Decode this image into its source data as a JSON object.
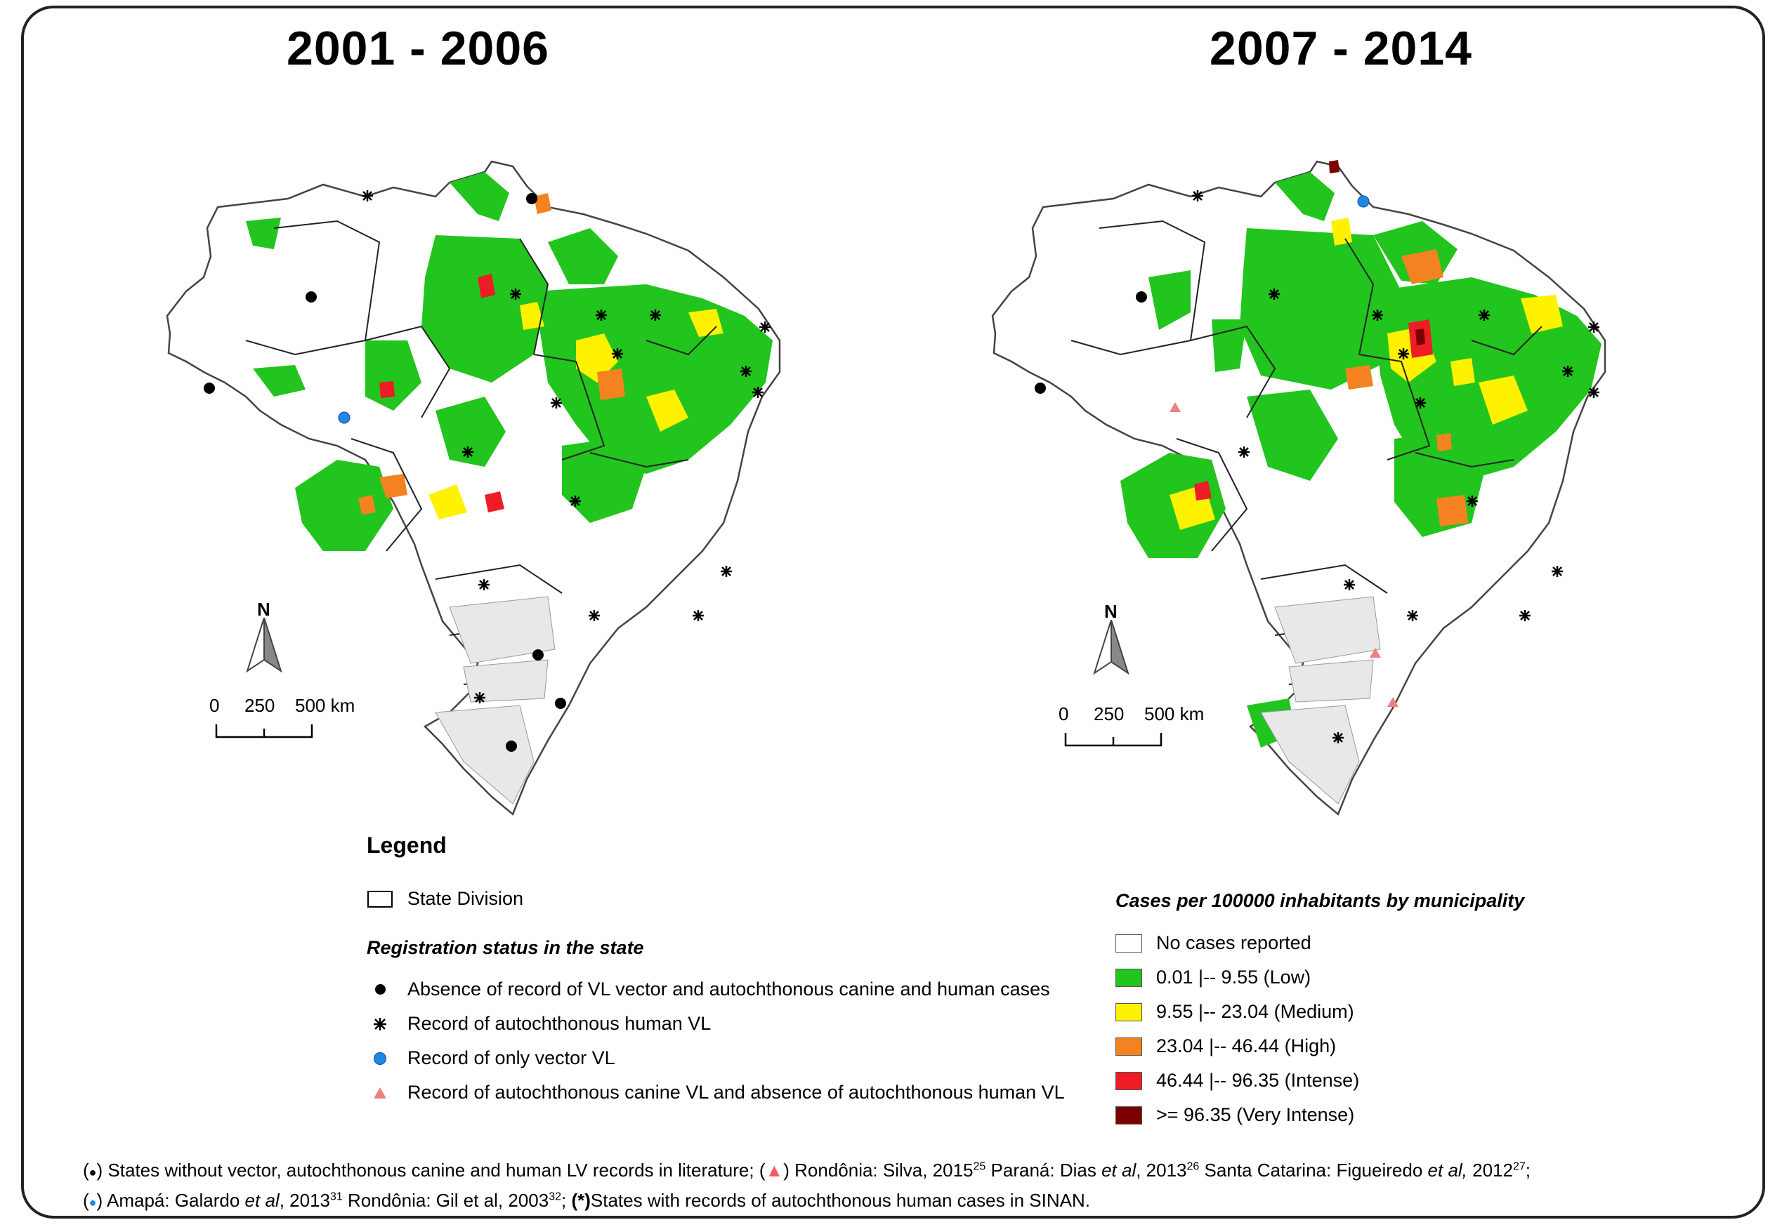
{
  "titles": {
    "left": "2001 - 2006",
    "right": "2007 - 2014"
  },
  "north_label": "N",
  "scale_labels": {
    "zero": "0",
    "mid": "250",
    "end": "500 km"
  },
  "legend": {
    "title": "Legend",
    "state_division": "State Division",
    "registration_title": "Registration status in the state",
    "items": [
      {
        "symbol": "black-dot",
        "label": "Absence of record of VL vector and autochthonous canine and human cases"
      },
      {
        "symbol": "asterisk",
        "label": "Record of autochthonous human VL"
      },
      {
        "symbol": "blue-dot",
        "label": "Record of only vector VL"
      },
      {
        "symbol": "pink-triangle",
        "label": "Record of autochthonous canine VL and absence of autochthonous human VL"
      }
    ]
  },
  "classes": {
    "title": "Cases per 100000 inhabitants by municipality",
    "items": [
      {
        "label": "No cases reported",
        "color": "#ffffff"
      },
      {
        "label": "0.01 |-- 9.55 (Low)",
        "color": "#22c41e"
      },
      {
        "label": "9.55 |-- 23.04 (Medium)",
        "color": "#fff200"
      },
      {
        "label": "23.04 |-- 46.44 (High)",
        "color": "#f58220"
      },
      {
        "label": "46.44 |-- 96.35 (Intense)",
        "color": "#ee1c24"
      },
      {
        "label": ">= 96.35 (Very Intense)",
        "color": "#7a0000"
      }
    ]
  },
  "footnotes": {
    "line1": {
      "a": "(",
      "b": ") States without vector, autochthonous canine and human LV records in literature; (",
      "c": ") Rondônia: Silva, 2015",
      "c_sup": "25",
      "d": " Paraná: Dias ",
      "d_it": "et al",
      "d2": ", 2013",
      "d_sup": "26",
      "e": " Santa Catarina: Figueiredo ",
      "e_it": "et al,",
      "e2": " 2012",
      "e_sup": "27",
      "f": ";"
    },
    "line2": {
      "a": "(",
      "b": ") Amapá: Galardo ",
      "b_it": "et al",
      "b2": ", 2013",
      "b_sup": "31",
      "c": " Rondônia: Gil et al, 2003",
      "c_sup": "32",
      "d": "; ",
      "d_bold": "(*)",
      "e": "States with records of autochthonous human cases in SINAN."
    }
  },
  "colors": {
    "no_cases": "#ffffff",
    "low": "#22c41e",
    "medium": "#fff200",
    "high": "#f58220",
    "intense": "#ee1c24",
    "very_intense": "#7a0000",
    "blue_dot": "#1e88e5",
    "triangle": "#f08080"
  }
}
